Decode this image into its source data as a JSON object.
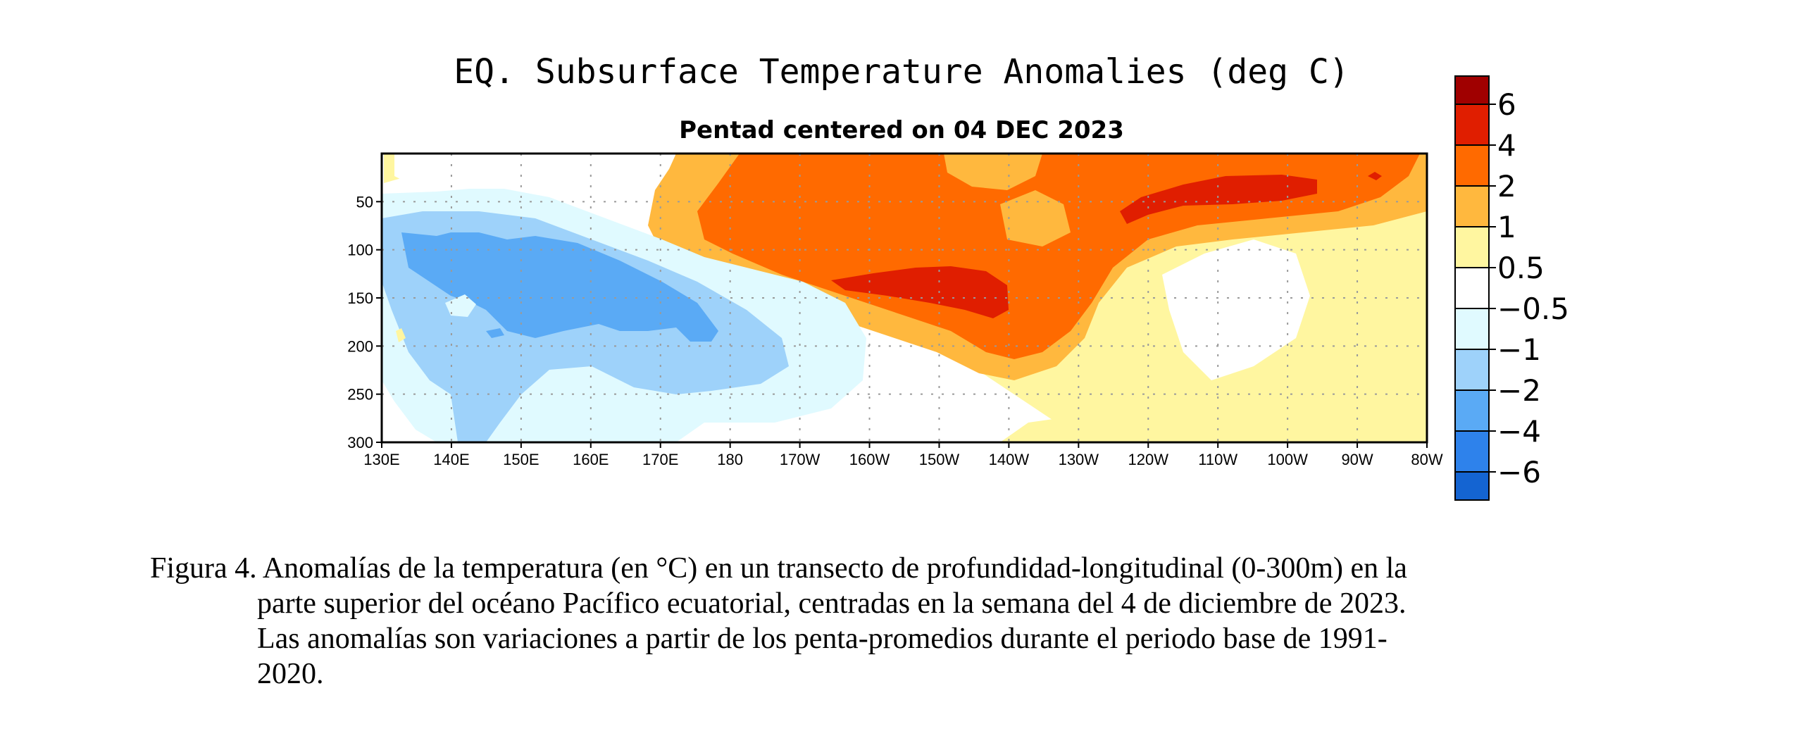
{
  "chart_data": {
    "type": "heatmap",
    "title": "EQ. Subsurface Temperature Anomalies (deg C)",
    "subtitle": "Pentad centered on 04 DEC 2023",
    "x_ticks": [
      "130E",
      "140E",
      "150E",
      "160E",
      "170E",
      "180",
      "170W",
      "160W",
      "150W",
      "140W",
      "130W",
      "120W",
      "110W",
      "100W",
      "90W",
      "80W"
    ],
    "y_ticks": [
      "50",
      "100",
      "150",
      "200",
      "250",
      "300"
    ],
    "y_tick_values": [
      50,
      100,
      150,
      200,
      250,
      300
    ],
    "ylim": [
      0,
      300
    ],
    "grid": true,
    "colorbar": {
      "labels": [
        "6",
        "4",
        "2",
        "1",
        "0.5",
        "−0.5",
        "−1",
        "−2",
        "−4",
        "−6"
      ],
      "colors": [
        "#A00000",
        "#E01E00",
        "#FF6A00",
        "#FFB83E",
        "#FFF6A0",
        "#FFFFFF",
        "#E0FAFF",
        "#9ED2FA",
        "#5AAAF5",
        "#2E82EB",
        "#1464D2"
      ]
    },
    "regions": [
      {
        "level": 2,
        "color": "#FFB83E",
        "lon": 191,
        "depth": 110,
        "rlon": 30,
        "rdepth": 30
      },
      {
        "level": 1,
        "color": "#FFF6A0",
        "lon": 240,
        "depth": 250,
        "rlon": 30,
        "rdepth": 50
      }
    ]
  },
  "caption": {
    "lines": [
      "Figura 4. Anomalías de la temperatura (en °C) en un transecto de profundidad-longitudinal (0-300m) en la",
      "parte superior del océano Pacífico ecuatorial, centradas en la semana del 4 de diciembre de 2023.",
      "Las anomalías son variaciones a partir de los penta-promedios durante el periodo base de 1991-",
      "2020."
    ]
  }
}
